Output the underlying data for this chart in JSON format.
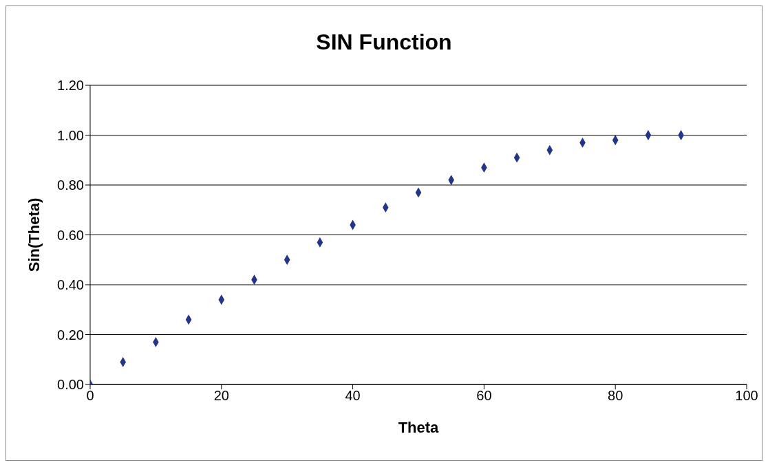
{
  "chart_data": {
    "type": "scatter",
    "title": "SIN Function",
    "xlabel": "Theta",
    "ylabel": "Sin(Theta)",
    "x": [
      0,
      5,
      10,
      15,
      20,
      25,
      30,
      35,
      40,
      45,
      50,
      55,
      60,
      65,
      70,
      75,
      80,
      85,
      90
    ],
    "values": [
      0,
      0.09,
      0.17,
      0.26,
      0.34,
      0.42,
      0.5,
      0.57,
      0.64,
      0.71,
      0.77,
      0.82,
      0.87,
      0.91,
      0.94,
      0.97,
      0.98,
      1.0,
      1.0
    ],
    "color": "#233489",
    "marker": "diamond",
    "grid": "y",
    "legend": false,
    "xlim": [
      0,
      100
    ],
    "xticks": [
      0,
      20,
      40,
      60,
      80,
      100
    ],
    "ylim": [
      0,
      1.2
    ],
    "yticks": [
      {
        "value": 0,
        "label": "0.00"
      },
      {
        "value": 0.2,
        "label": "0.20"
      },
      {
        "value": 0.4,
        "label": "0.40"
      },
      {
        "value": 0.6,
        "label": "0.60"
      },
      {
        "value": 0.8,
        "label": "0.80"
      },
      {
        "value": 1.0,
        "label": "1.00"
      },
      {
        "value": 1.2,
        "label": "1.20"
      }
    ]
  }
}
